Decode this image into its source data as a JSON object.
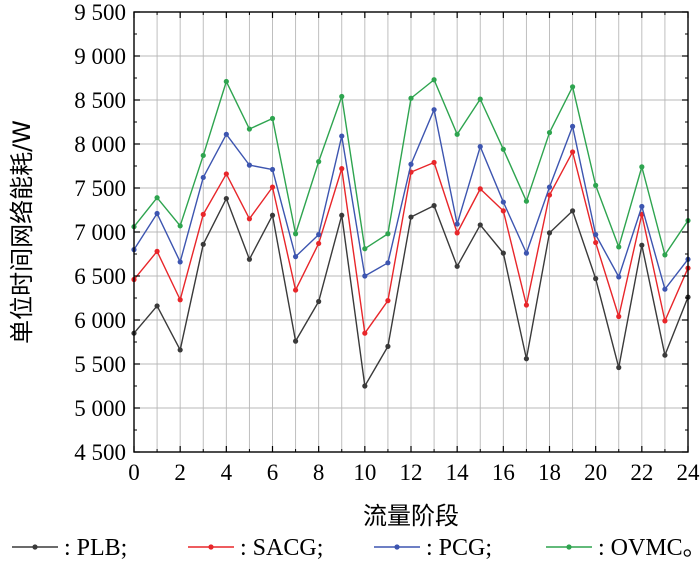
{
  "chart_data": {
    "type": "line",
    "xlabel": "流量阶段",
    "ylabel": "单位时间网络能耗/W",
    "xlim": [
      0,
      24
    ],
    "ylim": [
      4500,
      9500
    ],
    "xticks": [
      0,
      2,
      4,
      6,
      8,
      10,
      12,
      14,
      16,
      18,
      20,
      22,
      24
    ],
    "yticks": [
      4500,
      5000,
      5500,
      6000,
      6500,
      7000,
      7500,
      8000,
      8500,
      9000,
      9500
    ],
    "xtick_labels": [
      "0",
      "2",
      "4",
      "6",
      "8",
      "10",
      "12",
      "14",
      "16",
      "18",
      "20",
      "22",
      "24"
    ],
    "ytick_labels": [
      "4 500",
      "5 000",
      "5 500",
      "6 000",
      "6 500",
      "7 000",
      "7 500",
      "8 000",
      "8 500",
      "9 000",
      "9 500"
    ],
    "grid": true,
    "legend_position": "bottom",
    "x": [
      0,
      1,
      2,
      3,
      4,
      5,
      6,
      7,
      8,
      9,
      10,
      11,
      12,
      13,
      14,
      15,
      16,
      17,
      18,
      19,
      20,
      21,
      22,
      23,
      24
    ],
    "series": [
      {
        "name": "PLB",
        "legend_label": ": PLB;",
        "color": "#3a3a3a",
        "values": [
          5850,
          6160,
          5660,
          6860,
          7380,
          6690,
          7190,
          5760,
          6210,
          7190,
          5250,
          5700,
          7170,
          7300,
          6610,
          7080,
          6760,
          5560,
          6990,
          7240,
          6470,
          5460,
          6850,
          5600,
          6260
        ]
      },
      {
        "name": "SACG",
        "legend_label": ": SACG;",
        "color": "#e8262a",
        "values": [
          6460,
          6780,
          6230,
          7200,
          7660,
          7150,
          7510,
          6340,
          6870,
          7720,
          5850,
          6220,
          7680,
          7790,
          6990,
          7490,
          7240,
          6170,
          7420,
          7910,
          6880,
          6040,
          7200,
          5990,
          6590
        ]
      },
      {
        "name": "PCG",
        "legend_label": ": PCG;",
        "color": "#3d55b0",
        "values": [
          6800,
          7210,
          6660,
          7620,
          8110,
          7760,
          7710,
          6720,
          6970,
          8090,
          6500,
          6650,
          7770,
          8390,
          7090,
          7970,
          7340,
          6760,
          7510,
          8200,
          6970,
          6490,
          7290,
          6350,
          6690
        ]
      },
      {
        "name": "OVMC",
        "legend_label": ": OVMC。",
        "color": "#2ea44f",
        "values": [
          7060,
          7390,
          7070,
          7870,
          8710,
          8170,
          8290,
          6980,
          7800,
          8540,
          6810,
          6980,
          8520,
          8730,
          8110,
          8510,
          7940,
          7350,
          8130,
          8650,
          7530,
          6830,
          7740,
          6740,
          7130
        ]
      }
    ]
  }
}
